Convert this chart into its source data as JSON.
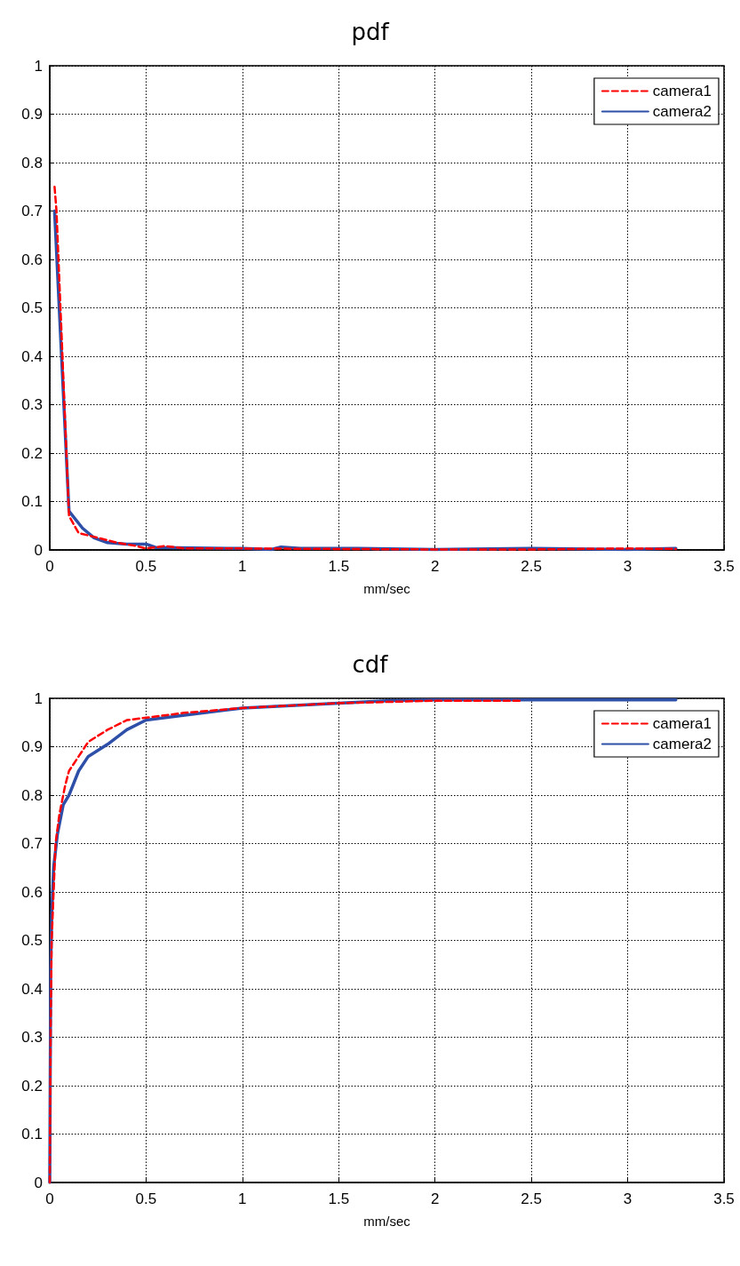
{
  "chart_data": [
    {
      "type": "line",
      "title": "pdf",
      "xlabel": "mm/sec",
      "xlim": [
        0,
        3.5
      ],
      "xticks": [
        0,
        0.5,
        1,
        1.5,
        2,
        2.5,
        3,
        3.5
      ],
      "ylim": [
        0,
        1
      ],
      "yticks": [
        0,
        0.1,
        0.2,
        0.3,
        0.4,
        0.5,
        0.6,
        0.7,
        0.8,
        0.9,
        1
      ],
      "grid": true,
      "legend": "top right",
      "marker": "none",
      "series": [
        {
          "name": "camera1",
          "color": "#ff0000",
          "line_style": "dashed",
          "x": [
            0.025,
            0.035,
            0.1,
            0.15,
            0.25,
            0.35,
            0.45,
            0.5,
            0.6,
            0.7,
            1,
            1.5,
            2,
            2.5,
            3,
            3.25
          ],
          "values": [
            0.75,
            0.7,
            0.07,
            0.035,
            0.025,
            0.015,
            0.008,
            0.003,
            0.008,
            0.003,
            0.003,
            0.002,
            0.001,
            0.001,
            0.003,
            0.002
          ]
        },
        {
          "name": "camera2",
          "color": "#2e4fa8",
          "line_style": "solid",
          "x": [
            0.025,
            0.1,
            0.17,
            0.23,
            0.3,
            0.4,
            0.5,
            0.55,
            1,
            1.15,
            1.2,
            1.3,
            1.6,
            2,
            2.5,
            3,
            3.25
          ],
          "values": [
            0.7,
            0.08,
            0.045,
            0.025,
            0.015,
            0.012,
            0.012,
            0.005,
            0.003,
            0.001,
            0.006,
            0.003,
            0.003,
            0.001,
            0.003,
            0.001,
            0.003
          ]
        }
      ]
    },
    {
      "type": "line",
      "title": "cdf",
      "xlabel": "mm/sec",
      "xlim": [
        0,
        3.5
      ],
      "xticks": [
        0,
        0.5,
        1,
        1.5,
        2,
        2.5,
        3,
        3.5
      ],
      "ylim": [
        0,
        1
      ],
      "yticks": [
        0,
        0.1,
        0.2,
        0.3,
        0.4,
        0.5,
        0.6,
        0.7,
        0.8,
        0.9,
        1
      ],
      "grid": true,
      "legend": "top right",
      "marker": "none",
      "series": [
        {
          "name": "camera1",
          "color": "#ff0000",
          "line_style": "dashed",
          "x": [
            0,
            0.005,
            0.01,
            0.02,
            0.03,
            0.05,
            0.08,
            0.1,
            0.15,
            0.2,
            0.3,
            0.4,
            0.5,
            0.7,
            1,
            1.5,
            2,
            2.45
          ],
          "values": [
            0,
            0.33,
            0.5,
            0.6,
            0.7,
            0.76,
            0.82,
            0.85,
            0.88,
            0.91,
            0.935,
            0.955,
            0.96,
            0.97,
            0.98,
            0.99,
            0.995,
            0.995
          ]
        },
        {
          "name": "camera2",
          "color": "#2e4fa8",
          "line_style": "solid",
          "x": [
            0,
            0.005,
            0.01,
            0.02,
            0.04,
            0.07,
            0.1,
            0.15,
            0.2,
            0.3,
            0.4,
            0.5,
            0.7,
            1,
            1.5,
            1.75,
            2,
            3.25
          ],
          "values": [
            0,
            0.44,
            0.55,
            0.65,
            0.72,
            0.78,
            0.8,
            0.85,
            0.88,
            0.905,
            0.935,
            0.955,
            0.965,
            0.98,
            0.99,
            0.995,
            0.997,
            0.997
          ]
        }
      ]
    }
  ]
}
